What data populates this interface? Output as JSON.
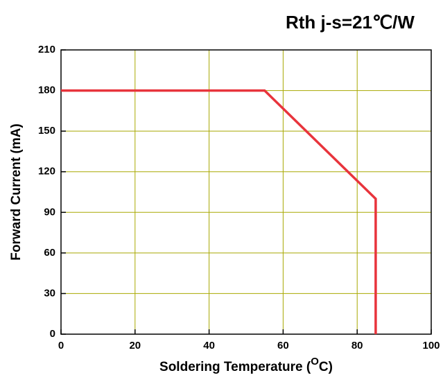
{
  "chart_data": {
    "type": "line",
    "annotation": "Rth j-s=21℃/W",
    "xlabel": {
      "text": "Soldering Temperature (",
      "sup": "O",
      "end": "C)"
    },
    "ylabel": "Forward Current (mA)",
    "x": [
      0,
      55,
      85,
      85
    ],
    "series": [
      {
        "color": "#e8343c",
        "values": [
          180,
          180,
          100,
          0
        ]
      }
    ],
    "xlim": [
      0,
      100
    ],
    "xticks": [
      0,
      20,
      40,
      60,
      80,
      100
    ],
    "ylim": [
      0,
      210
    ],
    "yticks": [
      0,
      30,
      60,
      90,
      120,
      150,
      180,
      210
    ],
    "grid": true,
    "grid_color": "#a8a800"
  }
}
